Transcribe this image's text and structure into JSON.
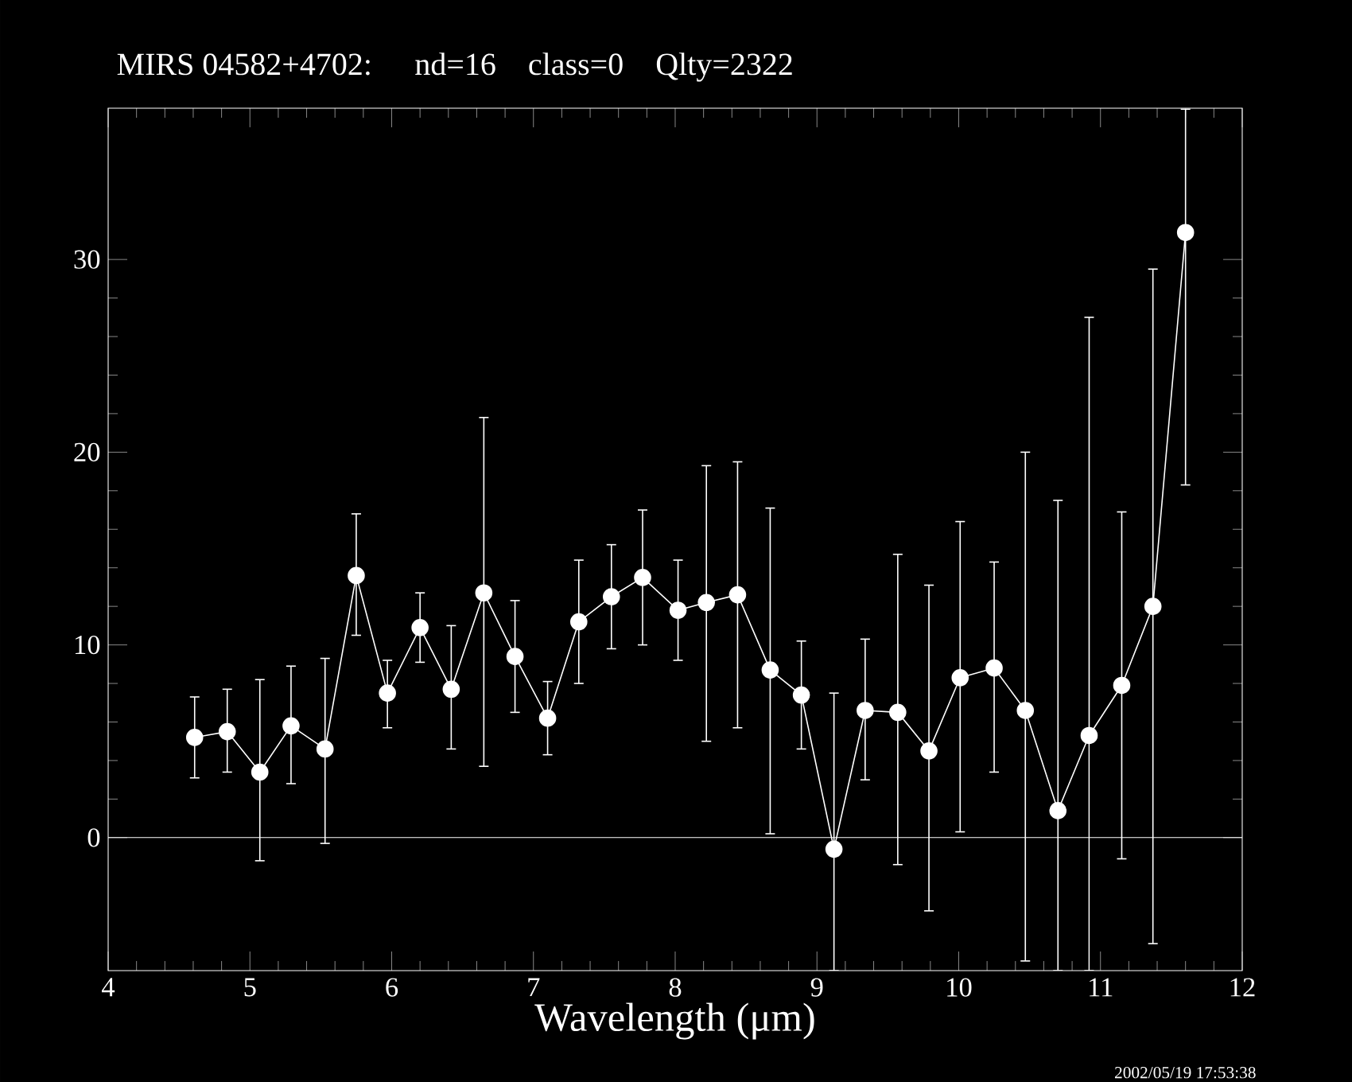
{
  "chart_data": {
    "type": "line",
    "title": "MIRS 04582+4702:    nd=16    class=0    Qlty=2322",
    "xlabel": "Wavelength (μm)",
    "annotations": [
      "2002/05/19 17:53:38"
    ],
    "x": [
      4.61,
      4.84,
      5.07,
      5.29,
      5.53,
      5.75,
      5.97,
      6.2,
      6.42,
      6.65,
      6.87,
      7.1,
      7.32,
      7.55,
      7.77,
      8.02,
      8.22,
      8.44,
      8.67,
      8.89,
      9.12,
      9.34,
      9.57,
      9.79,
      10.01,
      10.25,
      10.47,
      10.7,
      10.92,
      11.15,
      11.37,
      11.6
    ],
    "series": [
      {
        "color": "#ffffff",
        "values": [
          5.2,
          5.5,
          3.4,
          5.8,
          4.6,
          13.6,
          7.5,
          10.9,
          7.7,
          12.7,
          9.4,
          6.2,
          11.2,
          12.5,
          13.5,
          11.8,
          12.2,
          12.6,
          8.7,
          7.4,
          -0.6,
          6.6,
          6.5,
          4.5,
          8.3,
          8.8,
          6.6,
          1.4,
          5.3,
          7.9,
          12.0,
          31.4
        ],
        "errors": [
          [
            3.1,
            7.3
          ],
          [
            3.4,
            7.7
          ],
          [
            -1.2,
            8.2
          ],
          [
            2.8,
            8.9
          ],
          [
            -0.3,
            9.3
          ],
          [
            10.5,
            16.8
          ],
          [
            5.7,
            9.2
          ],
          [
            9.1,
            12.7
          ],
          [
            4.6,
            11.0
          ],
          [
            3.7,
            21.8
          ],
          [
            6.5,
            12.3
          ],
          [
            4.3,
            8.1
          ],
          [
            8.0,
            14.4
          ],
          [
            9.8,
            15.2
          ],
          [
            10.0,
            17.0
          ],
          [
            9.2,
            14.4
          ],
          [
            5.0,
            19.3
          ],
          [
            5.7,
            19.5
          ],
          [
            0.2,
            17.1
          ],
          [
            4.6,
            10.2
          ],
          [
            -6.9,
            7.5
          ],
          [
            3.0,
            10.3
          ],
          [
            -1.4,
            14.7
          ],
          [
            -3.8,
            13.1
          ],
          [
            0.3,
            16.4
          ],
          [
            3.4,
            14.3
          ],
          [
            -6.4,
            20.0
          ],
          [
            -6.9,
            17.5
          ],
          [
            -6.9,
            27.0
          ],
          [
            -1.1,
            16.9
          ],
          [
            -5.5,
            29.5
          ],
          [
            18.3,
            37.8
          ]
        ]
      }
    ],
    "xlim": [
      4,
      12
    ],
    "ylim": [
      -6.9,
      37.85
    ],
    "xticks": [
      4,
      5,
      6,
      7,
      8,
      9,
      10,
      11,
      12
    ],
    "yticks": [
      0,
      10,
      20,
      30
    ],
    "ref_lines": [
      {
        "axis": "y",
        "value": 0,
        "color": "#ffffff"
      }
    ],
    "marker": "circle",
    "line_style": "solid"
  }
}
